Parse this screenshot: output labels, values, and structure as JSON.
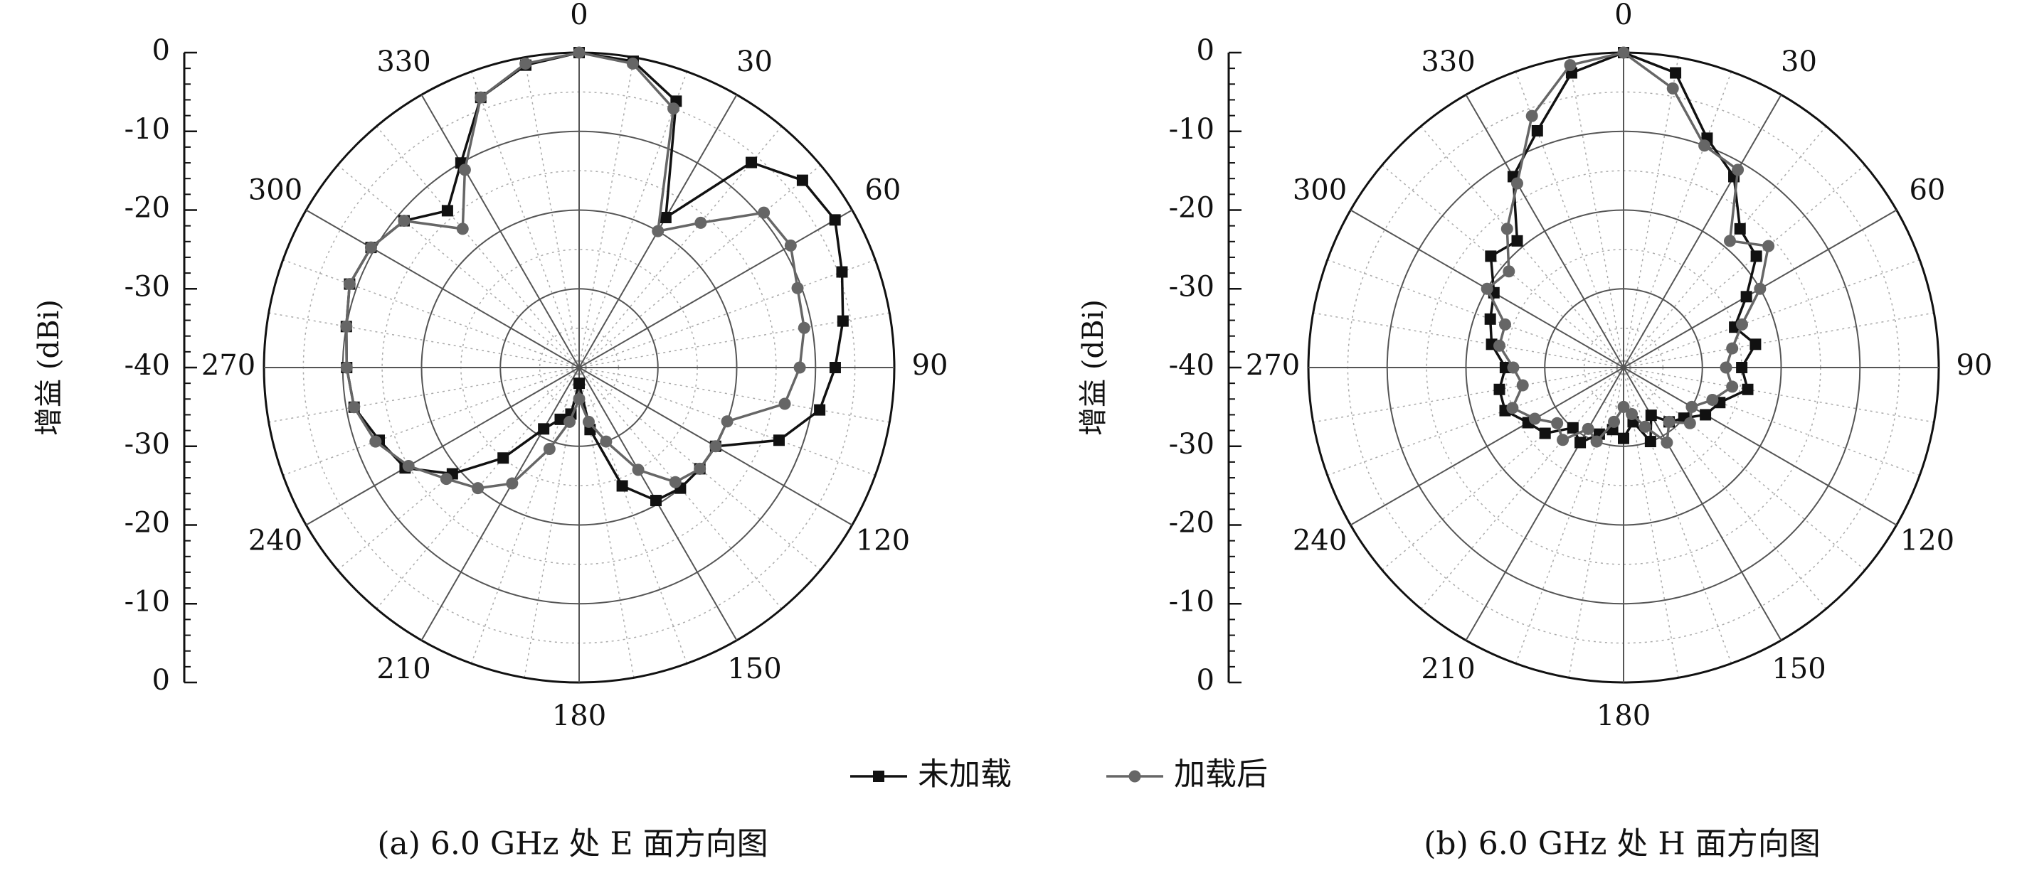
{
  "chart_data": [
    {
      "type": "polar",
      "subtitle": "(a) 6.0 GHz 处 E 面方向图",
      "ylabel": "增益 (dBi)",
      "rlim": [
        -40,
        0
      ],
      "rticks": [
        -40,
        -30,
        -20,
        -10,
        0
      ],
      "thetaticks": [
        0,
        30,
        60,
        90,
        120,
        150,
        180,
        210,
        240,
        270,
        300,
        330
      ],
      "theta": [
        0,
        10,
        20,
        30,
        40,
        50,
        60,
        70,
        80,
        90,
        100,
        110,
        120,
        130,
        140,
        150,
        160,
        170,
        180,
        190,
        200,
        210,
        220,
        230,
        240,
        250,
        260,
        270,
        280,
        290,
        300,
        310,
        320,
        330,
        340,
        350
      ],
      "series": [
        {
          "name": "未加载",
          "color": "#111111",
          "marker": "square",
          "values": [
            0,
            -0.5,
            -4,
            -18,
            -6,
            -3,
            -2.5,
            -4.5,
            -6,
            -7.5,
            -9,
            -13,
            -20,
            -20,
            -20,
            -20.5,
            -24,
            -32,
            -38,
            -34,
            -33,
            -31,
            -25,
            -19,
            -14.5,
            -13,
            -11,
            -10.5,
            -10,
            -9,
            -9.5,
            -11,
            -14,
            -10,
            -3.5,
            -1
          ]
        },
        {
          "name": "加载后",
          "color": "#666666",
          "marker": "circle",
          "values": [
            0,
            -0.8,
            -5,
            -20,
            -16,
            -9.4,
            -9,
            -10.5,
            -11,
            -12,
            -13.5,
            -20,
            -20,
            -20,
            -21,
            -25,
            -30,
            -33,
            -36,
            -33,
            -29,
            -23,
            -20,
            -18,
            -15,
            -12.5,
            -11,
            -10.5,
            -10,
            -9,
            -9.5,
            -11,
            -17,
            -11,
            -3.5,
            -0.8
          ]
        }
      ]
    },
    {
      "type": "polar",
      "subtitle": "(b) 6.0 GHz 处 H 面方向图",
      "ylabel": "增益 (dBi)",
      "rlim": [
        -40,
        0
      ],
      "rticks": [
        -40,
        -30,
        -20,
        -10,
        0
      ],
      "thetaticks": [
        0,
        30,
        60,
        90,
        120,
        150,
        180,
        210,
        240,
        270,
        300,
        330
      ],
      "theta": [
        0,
        10,
        20,
        30,
        40,
        50,
        60,
        70,
        80,
        90,
        100,
        110,
        120,
        130,
        140,
        150,
        160,
        170,
        180,
        190,
        200,
        210,
        220,
        230,
        240,
        250,
        260,
        270,
        280,
        290,
        300,
        310,
        320,
        330,
        340,
        350
      ],
      "series": [
        {
          "color": "#111111",
          "marker": "square",
          "values": [
            0,
            -2,
            -9,
            -12,
            -17,
            -18,
            -22,
            -25,
            -23,
            -25,
            -24,
            -27,
            -28,
            -30,
            -31,
            -33,
            -30,
            -33,
            -31,
            -32,
            -31,
            -29,
            -30,
            -27,
            -26,
            -24,
            -24,
            -25,
            -23,
            -22,
            -21,
            -18,
            -19,
            -12,
            -8,
            -2
          ]
        },
        {
          "color": "#666666",
          "marker": "circle",
          "values": [
            0,
            -4,
            -10,
            -11,
            -19,
            -16,
            -20,
            -24,
            -26,
            -27,
            -26,
            -28,
            -30,
            -29,
            -31,
            -29,
            -32,
            -34,
            -35,
            -33,
            -30,
            -31,
            -28,
            -29,
            -27,
            -25,
            -27,
            -26,
            -24,
            -24,
            -20,
            -21,
            -17,
            -13,
            -6,
            -1
          ]
        }
      ]
    }
  ]
}
